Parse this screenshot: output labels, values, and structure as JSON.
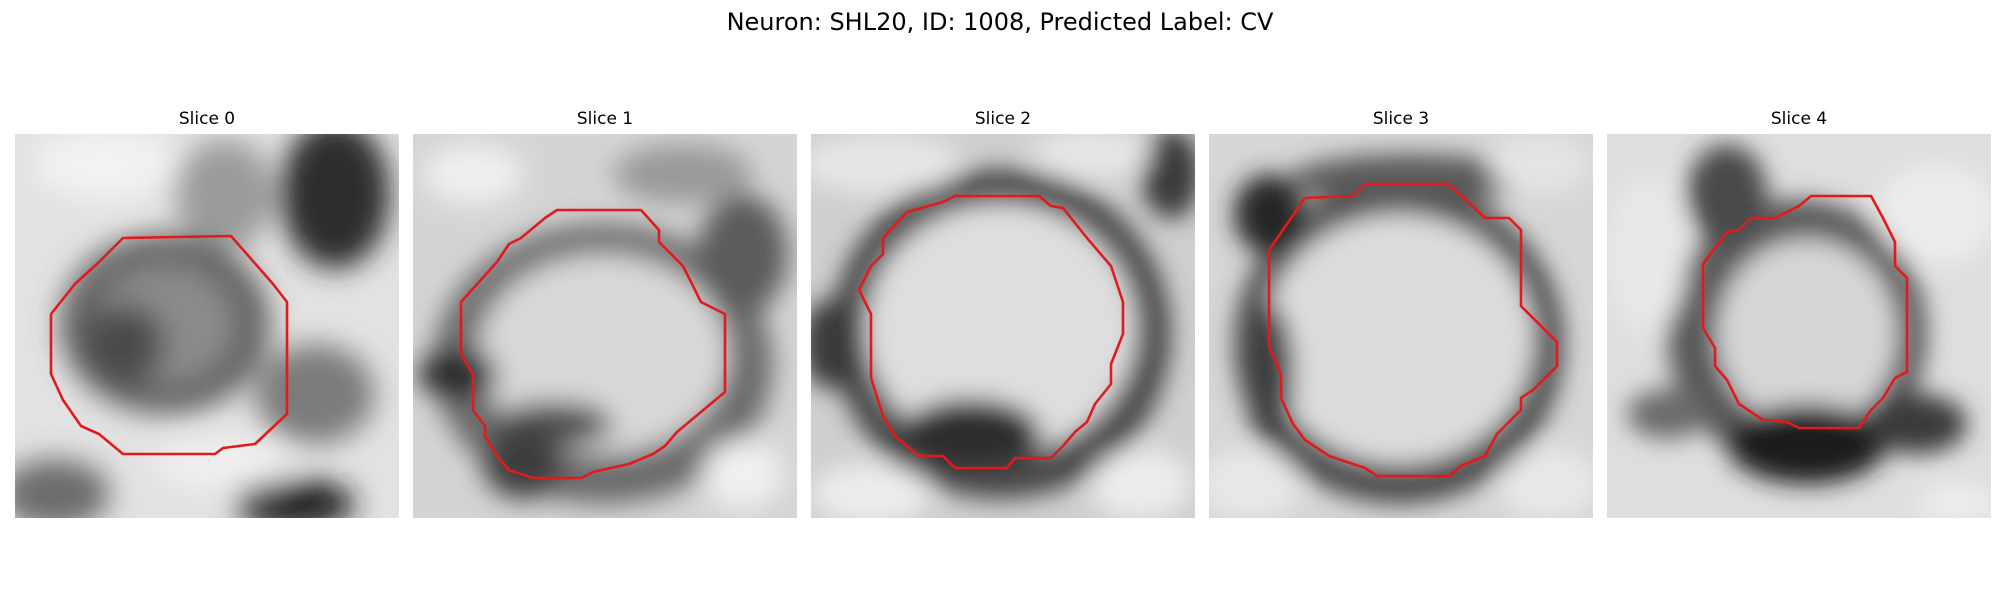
{
  "figure": {
    "title": "Neuron: SHL20, ID: 1008, Predicted Label: CV",
    "contour_color": "#e31a1c"
  },
  "panels": [
    {
      "title": "Slice 0"
    },
    {
      "title": "Slice 1"
    },
    {
      "title": "Slice 2"
    },
    {
      "title": "Slice 3"
    },
    {
      "title": "Slice 4"
    }
  ]
}
